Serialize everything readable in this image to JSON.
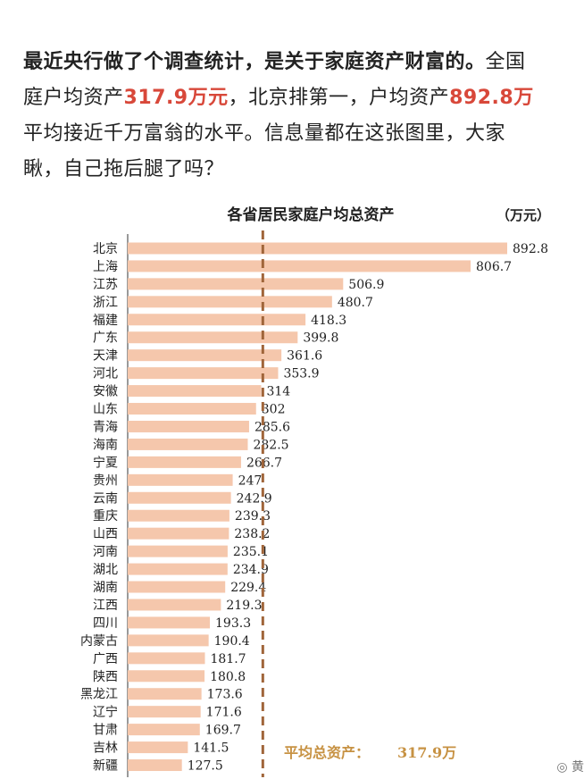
{
  "intro": {
    "line1_bold": "最近央行做了个调查统计，是关于家庭资产财富的。",
    "line1_rest": "全国",
    "line2_a": "庭户均资产",
    "line2_hl1": "317.9万元",
    "line2_b": "，北京排第一，户均资产",
    "line2_hl2": "892.8万",
    "line3": "平均接近千万富翁的水平。信息量都在这张图里，大家",
    "line4": "瞅，自己拖后腿了吗？"
  },
  "watermark": "◎ 黄",
  "chart_data": {
    "type": "bar",
    "orientation": "horizontal",
    "title": "各省居民家庭户均总资产",
    "unit": "（万元）",
    "categories": [
      "北京",
      "上海",
      "江苏",
      "浙江",
      "福建",
      "广东",
      "天津",
      "河北",
      "安徽",
      "山东",
      "青海",
      "海南",
      "宁夏",
      "贵州",
      "云南",
      "重庆",
      "山西",
      "河南",
      "湖北",
      "湖南",
      "江西",
      "四川",
      "内蒙古",
      "广西",
      "陕西",
      "黑龙江",
      "辽宁",
      "甘肃",
      "吉林",
      "新疆"
    ],
    "values": [
      892.8,
      806.7,
      506.9,
      480.7,
      418.3,
      399.8,
      361.6,
      353.9,
      314,
      302,
      285.6,
      282.5,
      266.7,
      247,
      242.9,
      239.3,
      238.2,
      235.1,
      234.9,
      229.4,
      219.3,
      193.3,
      190.4,
      181.7,
      180.8,
      173.6,
      171.6,
      169.7,
      141.5,
      127.5
    ],
    "reference_line": {
      "value": 317.9,
      "label": "平均总资产：",
      "value_label": "317.9万"
    },
    "bar_color": "#f5c7ac",
    "ref_line_color": "#a0653a",
    "ref_label_color": "#c79243",
    "xlim": [
      0,
      892.8
    ]
  }
}
